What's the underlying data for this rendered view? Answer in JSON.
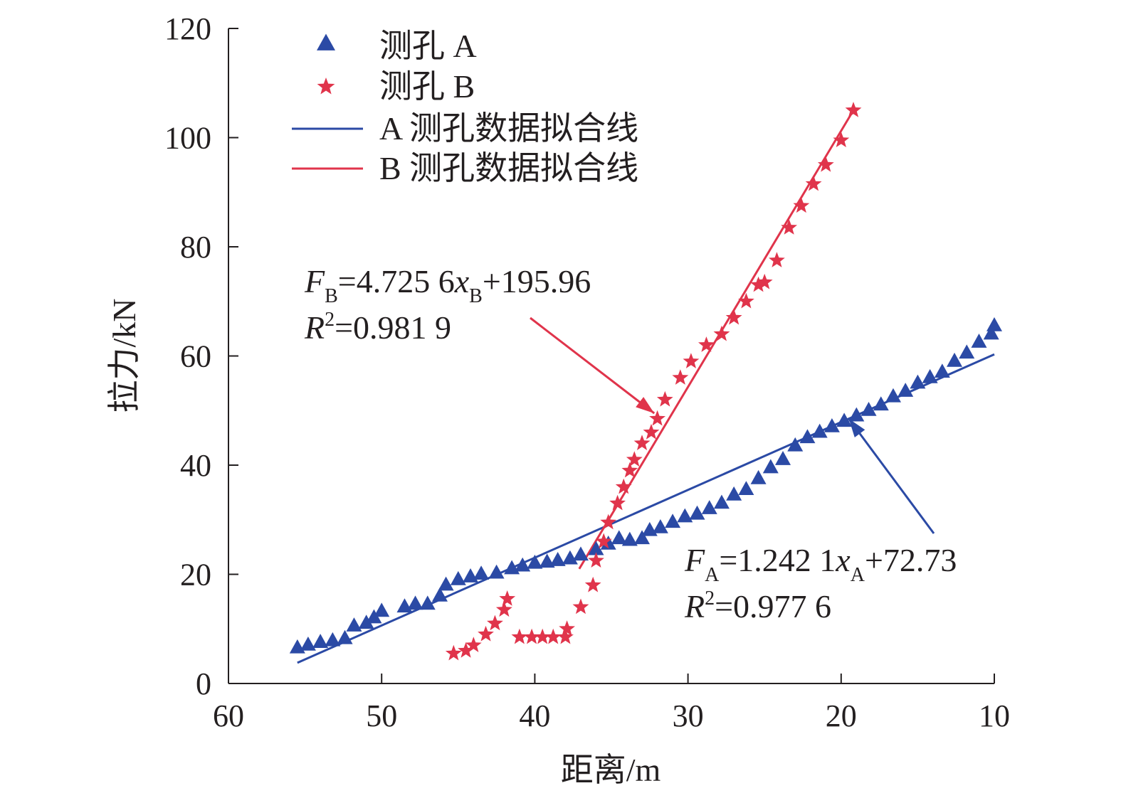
{
  "chart_data": {
    "type": "scatter",
    "xlabel": "距离/m",
    "ylabel": "拉力/kN",
    "xlim": [
      60,
      10
    ],
    "ylim": [
      0,
      120
    ],
    "x_reversed": true,
    "x_ticks": [
      60,
      50,
      40,
      30,
      20,
      10
    ],
    "y_ticks": [
      0,
      20,
      40,
      60,
      80,
      100,
      120
    ],
    "grid": false,
    "legend_position": "top-left",
    "series": [
      {
        "name": "测孔 A",
        "marker": "triangle",
        "color": "#2b4aa5",
        "points": [
          [
            55.5,
            6.5
          ],
          [
            54.8,
            7.0
          ],
          [
            54.0,
            7.5
          ],
          [
            53.2,
            7.8
          ],
          [
            52.4,
            8.2
          ],
          [
            51.8,
            10.5
          ],
          [
            51.0,
            11.0
          ],
          [
            50.5,
            12.0
          ],
          [
            50.0,
            13.2
          ],
          [
            48.5,
            14.0
          ],
          [
            47.8,
            14.5
          ],
          [
            47.0,
            14.5
          ],
          [
            46.2,
            16.0
          ],
          [
            45.8,
            18.0
          ],
          [
            45.0,
            19.0
          ],
          [
            44.2,
            19.5
          ],
          [
            43.5,
            20.0
          ],
          [
            42.5,
            20.2
          ],
          [
            41.5,
            21.0
          ],
          [
            40.8,
            21.5
          ],
          [
            40.0,
            22.0
          ],
          [
            39.2,
            22.2
          ],
          [
            38.5,
            22.5
          ],
          [
            37.7,
            22.8
          ],
          [
            37.0,
            23.5
          ],
          [
            36.0,
            24.5
          ],
          [
            35.2,
            25.5
          ],
          [
            34.5,
            26.5
          ],
          [
            33.8,
            26.2
          ],
          [
            33.0,
            26.5
          ],
          [
            32.5,
            28.0
          ],
          [
            31.8,
            28.5
          ],
          [
            31.0,
            29.5
          ],
          [
            30.2,
            30.5
          ],
          [
            29.4,
            31.0
          ],
          [
            28.6,
            32.0
          ],
          [
            27.8,
            33.0
          ],
          [
            27.0,
            34.5
          ],
          [
            26.2,
            35.5
          ],
          [
            25.4,
            37.5
          ],
          [
            24.6,
            39.5
          ],
          [
            23.8,
            41.0
          ],
          [
            23.0,
            43.5
          ],
          [
            22.2,
            45.0
          ],
          [
            21.4,
            46.0
          ],
          [
            20.6,
            47.0
          ],
          [
            19.8,
            48.0
          ],
          [
            19.0,
            49.0
          ],
          [
            18.2,
            50.0
          ],
          [
            17.4,
            51.0
          ],
          [
            16.6,
            52.5
          ],
          [
            15.8,
            53.5
          ],
          [
            15.0,
            55.0
          ],
          [
            14.2,
            56.0
          ],
          [
            13.4,
            57.0
          ],
          [
            12.6,
            59.0
          ],
          [
            11.8,
            60.5
          ],
          [
            11.0,
            62.5
          ],
          [
            10.2,
            64.0
          ],
          [
            10.0,
            65.5
          ]
        ]
      },
      {
        "name": "测孔 B",
        "marker": "star",
        "color": "#e0344b",
        "points": [
          [
            45.3,
            5.5
          ],
          [
            44.5,
            6.0
          ],
          [
            44.0,
            7.0
          ],
          [
            43.2,
            9.0
          ],
          [
            42.6,
            11.0
          ],
          [
            42.0,
            13.5
          ],
          [
            41.8,
            15.5
          ],
          [
            41.0,
            8.5
          ],
          [
            40.2,
            8.5
          ],
          [
            39.5,
            8.5
          ],
          [
            38.8,
            8.5
          ],
          [
            38.0,
            8.5
          ],
          [
            37.9,
            10.0
          ],
          [
            37.0,
            14.0
          ],
          [
            36.2,
            18.0
          ],
          [
            36.0,
            22.5
          ],
          [
            35.5,
            26.0
          ],
          [
            35.2,
            29.5
          ],
          [
            34.6,
            33.0
          ],
          [
            34.2,
            36.0
          ],
          [
            33.8,
            39.0
          ],
          [
            33.5,
            41.0
          ],
          [
            33.0,
            44.0
          ],
          [
            32.4,
            46.0
          ],
          [
            32.0,
            48.5
          ],
          [
            31.5,
            52.0
          ],
          [
            30.5,
            56.0
          ],
          [
            29.8,
            59.0
          ],
          [
            28.8,
            62.0
          ],
          [
            27.8,
            64.0
          ],
          [
            27.0,
            67.0
          ],
          [
            26.2,
            70.0
          ],
          [
            25.4,
            73.0
          ],
          [
            25.0,
            73.5
          ],
          [
            24.2,
            77.5
          ],
          [
            23.4,
            83.5
          ],
          [
            22.6,
            87.5
          ],
          [
            21.8,
            91.5
          ],
          [
            21.0,
            95.0
          ],
          [
            20.0,
            99.5
          ],
          [
            19.2,
            105.0
          ]
        ]
      }
    ],
    "fit_lines": [
      {
        "name": "A 测孔数据拟合线",
        "color": "#2b4aa5",
        "x": [
          55.5,
          10.0
        ],
        "y": [
          3.8,
          60.3
        ]
      },
      {
        "name": "B 测孔数据拟合线",
        "color": "#e0344b",
        "x": [
          37.1,
          19.2
        ],
        "y": [
          21.0,
          105.0
        ]
      }
    ],
    "annotations": [
      {
        "id": "eqB",
        "color": "#e0344b",
        "arrow_target": [
          32.2,
          49.5
        ],
        "line1": {
          "F": "F",
          "sub": "B",
          "mid": "=4.725 6",
          "x": "x",
          "sub2": "B",
          "tail": "+195.96"
        },
        "line2": {
          "R": "R",
          "sup": "2",
          "tail": "=0.981 9"
        }
      },
      {
        "id": "eqA",
        "color": "#2b4aa5",
        "arrow_target": [
          19.5,
          48.5
        ],
        "line1": {
          "F": "F",
          "sub": "A",
          "mid": "=1.242 1",
          "x": "x",
          "sub2": "A",
          "tail": "+72.73"
        },
        "line2": {
          "R": "R",
          "sup": "2",
          "tail": "=0.977 6"
        }
      }
    ]
  }
}
